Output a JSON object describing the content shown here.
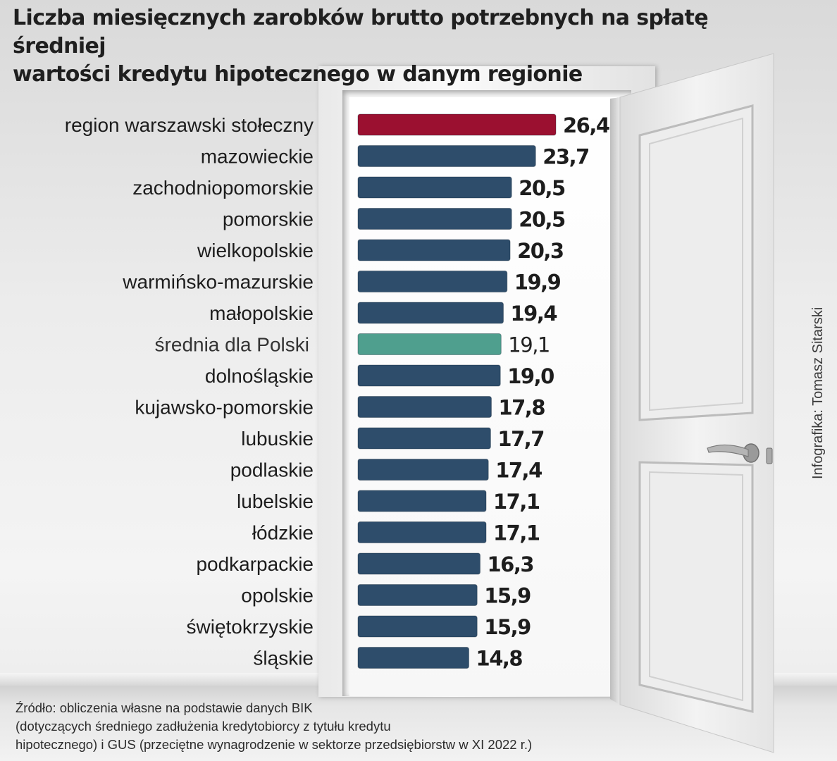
{
  "title_lines": [
    "Liczba miesięcznych zarobków brutto potrzebnych na spłatę średniej",
    "wartości kredytu hipotecznego w danym regionie"
  ],
  "credit": "Infografika: Tomasz Sitarski",
  "source_lines": [
    "Źródło: obliczenia własne na podstawie danych BIK",
    "(dotyczących średniego zadłużenia kredytobiorcy z tytułu kredytu",
    "hipotecznego) i GUS (przeciętne wynagrodzenie w sektorze przedsiębiorstw w XI 2022 r.)"
  ],
  "colors": {
    "highlight": "#9b1030",
    "default": "#2e4d6b",
    "average": "#4f9f8e"
  },
  "chart_data": {
    "type": "bar",
    "orientation": "horizontal",
    "title": "Liczba miesięcznych zarobków brutto potrzebnych na spłatę średniej wartości kredytu hipotecznego w danym regionie",
    "xlim": [
      0,
      26.4
    ],
    "grid": false,
    "legend": "none",
    "categories": [
      "region warszawski stołeczny",
      "mazowieckie",
      "zachodniopomorskie",
      "pomorskie",
      "wielkopolskie",
      "warmińsko-mazurskie",
      "małopolskie",
      "średnia dla Polski",
      "dolnośląskie",
      "kujawsko-pomorskie",
      "lubuskie",
      "podlaskie",
      "lubelskie",
      "łódzkie",
      "podkarpackie",
      "opolskie",
      "świętokrzyskie",
      "śląskie"
    ],
    "values": [
      26.4,
      23.7,
      20.5,
      20.5,
      20.3,
      19.9,
      19.4,
      19.1,
      19.0,
      17.8,
      17.7,
      17.4,
      17.1,
      17.1,
      16.3,
      15.9,
      15.9,
      14.8
    ],
    "value_labels": [
      "26,4",
      "23,7",
      "20,5",
      "20,5",
      "20,3",
      "19,9",
      "19,4",
      "19,1",
      "19,0",
      "17,8",
      "17,7",
      "17,4",
      "17,1",
      "17,1",
      "16,3",
      "15,9",
      "15,9",
      "14,8"
    ],
    "bar_kinds": [
      "highlight",
      "default",
      "default",
      "default",
      "default",
      "default",
      "default",
      "average",
      "default",
      "default",
      "default",
      "default",
      "default",
      "default",
      "default",
      "default",
      "default",
      "default"
    ]
  }
}
